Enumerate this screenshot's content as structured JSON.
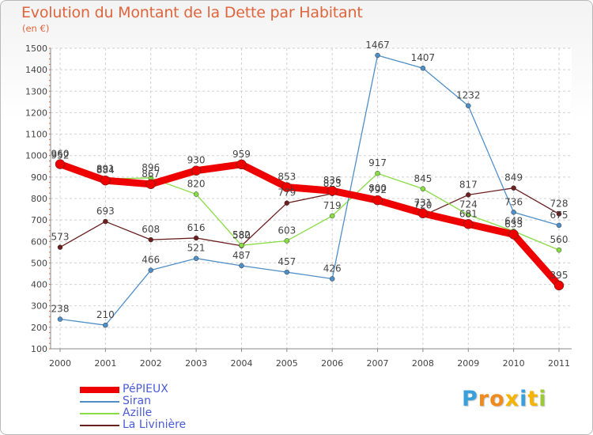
{
  "header": {
    "title": "Evolution du Montant de la Dette par Habitant",
    "unit": "(en €)"
  },
  "logo": {
    "letters": [
      "P",
      "r",
      "o",
      "x",
      "i",
      "t",
      "i"
    ],
    "colors": [
      "#3aa0dc",
      "#f08a1c",
      "#f08a1c",
      "#f5b400",
      "#3aa0dc",
      "#f5b400",
      "#9cc93a"
    ]
  },
  "chart_data": {
    "type": "line",
    "title": "Evolution du Montant de la Dette par Habitant",
    "ylabel": "(en €)",
    "xlabel": "",
    "ylim": [
      100,
      1500
    ],
    "yticks": [
      100,
      200,
      300,
      400,
      500,
      600,
      700,
      800,
      900,
      1000,
      1100,
      1200,
      1300,
      1400,
      1500
    ],
    "x": [
      "2000",
      "2001",
      "2002",
      "2003",
      "2004",
      "2005",
      "2006",
      "2007",
      "2008",
      "2009",
      "2010",
      "2011"
    ],
    "grid": true,
    "legend_position": "bottom-left",
    "series": [
      {
        "name": "PéPIEUX",
        "color": "#ee0000",
        "values": [
          960,
          884,
          867,
          930,
          959,
          853,
          836,
          792,
          731,
          681,
          633,
          395
        ]
      },
      {
        "name": "Siran",
        "color": "#4f8fc7",
        "values": [
          238,
          210,
          466,
          521,
          487,
          457,
          426,
          1467,
          1407,
          1232,
          736,
          675
        ]
      },
      {
        "name": "Azille",
        "color": "#88dd44",
        "values": [
          952,
          891,
          896,
          820,
          582,
          603,
          719,
          917,
          845,
          724,
          648,
          560
        ]
      },
      {
        "name": "La Livinière",
        "color": "#6b1f1f",
        "values": [
          573,
          693,
          608,
          616,
          580,
          779,
          823,
          800,
          720,
          817,
          849,
          728
        ]
      }
    ]
  }
}
